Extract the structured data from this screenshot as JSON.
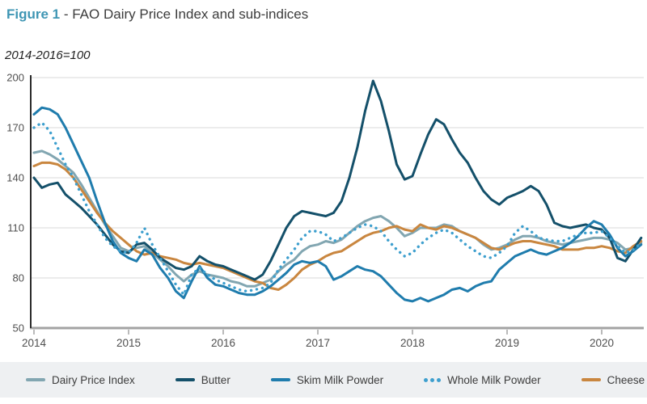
{
  "header": {
    "figure_label": "Figure 1",
    "separator": " - ",
    "title": "FAO Dairy Price Index and sub-indices"
  },
  "subtitle": "2014-2016=100",
  "style": {
    "figure_label_color": "#3f96b4",
    "title_color": "#3c3c3c",
    "grid_color": "#d9d9d9",
    "x_axis_color": "#a3a3a3",
    "y_axis_color": "#2b2b2b",
    "tick_label_color": "#4f4f4f",
    "legend_bg": "#eef0f2"
  },
  "chart_data": {
    "type": "line",
    "title": "FAO Dairy Price Index and sub-indices",
    "unit_note": "2014-2016=100",
    "x_axis": {
      "frequency": "monthly",
      "start": "2014-01",
      "end": "2020-06",
      "tick_labels": [
        "2014",
        "2015",
        "2016",
        "2017",
        "2018",
        "2019",
        "2020"
      ]
    },
    "y_axis": {
      "ticks": [
        50,
        80,
        110,
        140,
        170,
        200
      ],
      "range": [
        50,
        200
      ]
    },
    "grid": "horizontal-only",
    "legend_position": "bottom",
    "series": [
      {
        "name": "Dairy Price Index",
        "color": "#82a6b1",
        "style": "solid",
        "values": [
          155,
          156,
          154,
          151,
          147,
          143,
          136,
          128,
          120,
          112,
          105,
          98,
          96,
          98,
          99,
          95,
          91,
          87,
          82,
          78,
          82,
          84,
          82,
          81,
          80,
          78,
          77,
          75,
          75,
          77,
          79,
          84,
          88,
          91,
          96,
          99,
          100,
          102,
          101,
          103,
          107,
          111,
          114,
          116,
          117,
          114,
          110,
          105,
          107,
          110,
          110,
          110,
          112,
          111,
          108,
          106,
          104,
          100,
          97,
          98,
          100,
          103,
          105,
          105,
          104,
          102,
          101,
          100,
          101,
          102,
          103,
          104,
          104,
          103,
          101,
          97,
          98,
          101
        ]
      },
      {
        "name": "Butter",
        "color": "#14506a",
        "style": "solid",
        "values": [
          140,
          134,
          136,
          137,
          130,
          126,
          122,
          117,
          112,
          106,
          100,
          96,
          95,
          100,
          101,
          97,
          92,
          89,
          86,
          85,
          87,
          93,
          90,
          88,
          87,
          85,
          83,
          81,
          79,
          82,
          90,
          100,
          110,
          117,
          120,
          119,
          118,
          117,
          119,
          126,
          140,
          158,
          180,
          198,
          186,
          168,
          148,
          139,
          141,
          154,
          166,
          175,
          172,
          163,
          155,
          149,
          140,
          132,
          127,
          124,
          128,
          130,
          132,
          135,
          132,
          124,
          113,
          111,
          110,
          111,
          112,
          110,
          109,
          104,
          92,
          90,
          97,
          104
        ]
      },
      {
        "name": "Skim Milk Powder",
        "color": "#1f7cad",
        "style": "solid",
        "values": [
          178,
          182,
          181,
          178,
          170,
          160,
          150,
          140,
          126,
          113,
          102,
          95,
          92,
          90,
          97,
          94,
          86,
          80,
          72,
          68,
          78,
          87,
          80,
          76,
          75,
          73,
          71,
          70,
          70,
          72,
          75,
          79,
          83,
          88,
          90,
          89,
          90,
          87,
          79,
          81,
          84,
          87,
          85,
          84,
          81,
          76,
          71,
          67,
          66,
          68,
          66,
          68,
          70,
          73,
          74,
          72,
          75,
          77,
          78,
          85,
          89,
          93,
          95,
          97,
          95,
          94,
          96,
          98,
          101,
          105,
          110,
          114,
          112,
          106,
          98,
          93,
          96,
          100
        ]
      },
      {
        "name": "Whole Milk Powder",
        "color": "#3d9fce",
        "style": "dotted",
        "values": [
          170,
          173,
          168,
          158,
          148,
          140,
          130,
          120,
          112,
          104,
          99,
          96,
          95,
          101,
          110,
          100,
          92,
          84,
          76,
          70,
          82,
          86,
          82,
          79,
          77,
          75,
          73,
          72,
          73,
          74,
          77,
          85,
          91,
          97,
          104,
          108,
          108,
          106,
          102,
          104,
          107,
          110,
          112,
          111,
          108,
          102,
          97,
          93,
          95,
          100,
          104,
          107,
          109,
          107,
          103,
          99,
          96,
          93,
          92,
          95,
          99,
          107,
          111,
          108,
          104,
          103,
          102,
          102,
          104,
          106,
          107,
          107,
          108,
          104,
          99,
          95,
          97,
          101
        ]
      },
      {
        "name": "Cheese",
        "color": "#c9863f",
        "style": "solid",
        "values": [
          147,
          149,
          149,
          148,
          145,
          140,
          133,
          126,
          119,
          113,
          108,
          104,
          100,
          96,
          94,
          95,
          93,
          92,
          91,
          89,
          88,
          89,
          88,
          87,
          86,
          84,
          82,
          80,
          78,
          77,
          74,
          73,
          76,
          80,
          85,
          88,
          90,
          93,
          95,
          96,
          99,
          102,
          105,
          107,
          108,
          110,
          111,
          109,
          108,
          112,
          110,
          109,
          111,
          110,
          108,
          106,
          104,
          101,
          98,
          97,
          99,
          101,
          102,
          102,
          101,
          100,
          99,
          97,
          97,
          97,
          98,
          98,
          99,
          98,
          96,
          95,
          99,
          102
        ]
      }
    ]
  }
}
